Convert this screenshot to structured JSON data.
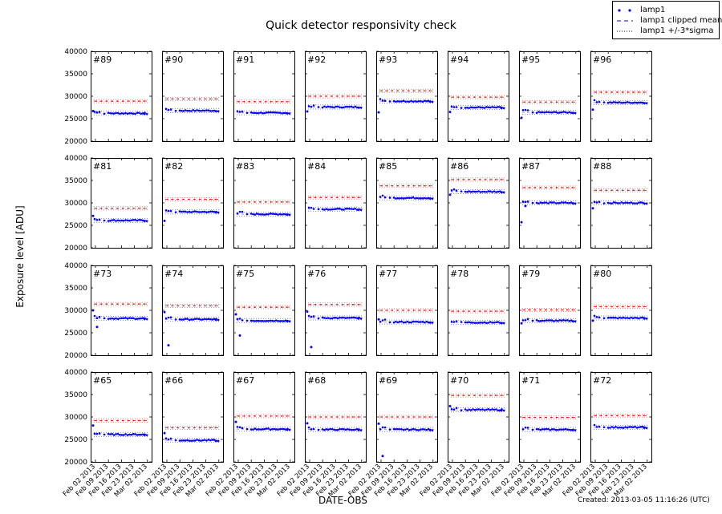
{
  "figure": {
    "title": "Quick detector responsivity check",
    "xlabel": "DATE-OBS",
    "ylabel": "Exposure level [ADU]",
    "created": "Created: 2013-03-05 11:16:26 (UTC)"
  },
  "legend": {
    "items": [
      {
        "label": "lamp1",
        "style": "dots",
        "color": "#0000ff"
      },
      {
        "label": "lamp1 clipped mean",
        "style": "dashed",
        "color": "#0000ff"
      },
      {
        "label": "lamp1 +/-3*sigma",
        "style": "dotted",
        "color": "#0000ff"
      }
    ]
  },
  "colors": {
    "lamp1": "#0000ff",
    "reference": "#ff0000",
    "sigma_band": "#8080ff",
    "axes": "#000000"
  },
  "chart_data": {
    "type": "scatter",
    "title": "Quick detector responsivity check",
    "xlabel": "DATE-OBS",
    "ylabel": "Exposure level [ADU]",
    "ylim": [
      20000,
      40000
    ],
    "yticks": [
      20000,
      25000,
      30000,
      35000,
      40000
    ],
    "xticks": [
      "Feb 02 2013",
      "Feb 09 2013",
      "Feb 16 2013",
      "Feb 23 2013",
      "Mar 02 2013"
    ],
    "grid": false,
    "legend_position": "upper right (outside)",
    "layout": {
      "rows": 4,
      "cols": 8
    },
    "panels": [
      {
        "label": "#89",
        "mean": 26200,
        "upper_ref": 28900,
        "outliers": [
          26700
        ]
      },
      {
        "label": "#90",
        "mean": 26800,
        "upper_ref": 29400,
        "outliers": []
      },
      {
        "label": "#91",
        "mean": 26300,
        "upper_ref": 28800,
        "outliers": []
      },
      {
        "label": "#92",
        "mean": 27600,
        "upper_ref": 30000,
        "outliers": [
          26600
        ]
      },
      {
        "label": "#93",
        "mean": 28900,
        "upper_ref": 31200,
        "outliers": [
          26400
        ]
      },
      {
        "label": "#94",
        "mean": 27500,
        "upper_ref": 29800,
        "outliers": [
          26500
        ]
      },
      {
        "label": "#95",
        "mean": 26400,
        "upper_ref": 28700,
        "outliers": [
          25200
        ]
      },
      {
        "label": "#96",
        "mean": 28600,
        "upper_ref": 30900,
        "outliers": [
          27000
        ]
      },
      {
        "label": "#81",
        "mean": 26100,
        "upper_ref": 28800,
        "outliers": [
          27100
        ]
      },
      {
        "label": "#82",
        "mean": 28000,
        "upper_ref": 30800,
        "outliers": [
          26000
        ]
      },
      {
        "label": "#83",
        "mean": 27500,
        "upper_ref": 30200,
        "outliers": []
      },
      {
        "label": "#84",
        "mean": 28600,
        "upper_ref": 31200,
        "outliers": []
      },
      {
        "label": "#85",
        "mean": 31100,
        "upper_ref": 33800,
        "outliers": []
      },
      {
        "label": "#86",
        "mean": 32500,
        "upper_ref": 35200,
        "outliers": [
          31800
        ]
      },
      {
        "label": "#87",
        "mean": 30000,
        "upper_ref": 33400,
        "outliers": [
          25700,
          29300
        ]
      },
      {
        "label": "#88",
        "mean": 30000,
        "upper_ref": 32800,
        "outliers": [
          28800
        ]
      },
      {
        "label": "#73",
        "mean": 28200,
        "upper_ref": 31400,
        "outliers": [
          30000,
          26300
        ]
      },
      {
        "label": "#74",
        "mean": 28000,
        "upper_ref": 31000,
        "outliers": [
          29600,
          22200
        ]
      },
      {
        "label": "#75",
        "mean": 27700,
        "upper_ref": 30700,
        "outliers": [
          29100,
          24400
        ]
      },
      {
        "label": "#76",
        "mean": 28300,
        "upper_ref": 31300,
        "outliers": [
          29700,
          21800
        ]
      },
      {
        "label": "#77",
        "mean": 27400,
        "upper_ref": 30000,
        "outliers": [
          28000
        ]
      },
      {
        "label": "#78",
        "mean": 27300,
        "upper_ref": 29800,
        "outliers": []
      },
      {
        "label": "#79",
        "mean": 27700,
        "upper_ref": 30100,
        "outliers": [
          27100
        ]
      },
      {
        "label": "#80",
        "mean": 28300,
        "upper_ref": 30800,
        "outliers": [
          27700
        ]
      },
      {
        "label": "#65",
        "mean": 26100,
        "upper_ref": 29200,
        "outliers": [
          28100
        ]
      },
      {
        "label": "#66",
        "mean": 24800,
        "upper_ref": 27600,
        "outliers": [
          26400
        ]
      },
      {
        "label": "#67",
        "mean": 27300,
        "upper_ref": 30200,
        "outliers": [
          28900
        ]
      },
      {
        "label": "#68",
        "mean": 27200,
        "upper_ref": 30000,
        "outliers": [
          28600
        ]
      },
      {
        "label": "#69",
        "mean": 27200,
        "upper_ref": 30000,
        "outliers": [
          28500,
          21300
        ]
      },
      {
        "label": "#70",
        "mean": 31600,
        "upper_ref": 34800,
        "outliers": [
          32400
        ]
      },
      {
        "label": "#71",
        "mean": 27200,
        "upper_ref": 29900,
        "outliers": []
      },
      {
        "label": "#72",
        "mean": 27700,
        "upper_ref": 30300,
        "outliers": []
      }
    ]
  }
}
